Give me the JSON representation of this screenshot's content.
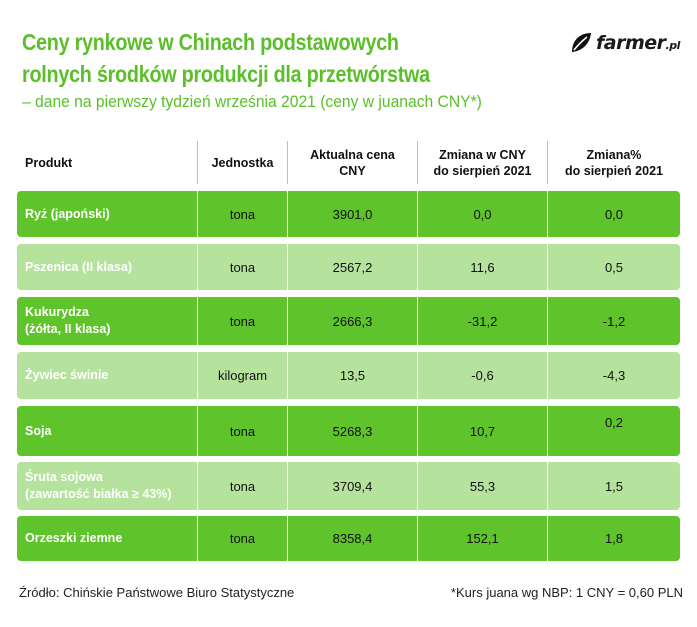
{
  "header": {
    "title_line1": "Ceny rynkowe w Chinach podstawowych",
    "title_line2": "rolnych środków produkcji dla przetwórstwa",
    "subtitle": "– dane na pierwszy tydzień września 2021 (ceny w juanach CNY*)",
    "logo_text": "farmer",
    "logo_tld": ".pl",
    "title_color": "#5bbf2a"
  },
  "table": {
    "columns": [
      {
        "line1": "Produkt",
        "line2": ""
      },
      {
        "line1": "Jednostka",
        "line2": ""
      },
      {
        "line1": "Aktualna cena",
        "line2": "CNY"
      },
      {
        "line1": "Zmiana w CNY",
        "line2": "do sierpień 2021"
      },
      {
        "line1": "Zmiana%",
        "line2": "do sierpień 2021"
      }
    ],
    "rows": [
      {
        "name1": "Ryż (japoński)",
        "name2": "",
        "unit": "tona",
        "price": "3901,0",
        "change_cny": "0,0",
        "change_pct": "0,0"
      },
      {
        "name1": "Pszenica (II klasa)",
        "name2": "",
        "unit": "tona",
        "price": "2567,2",
        "change_cny": "11,6",
        "change_pct": "0,5"
      },
      {
        "name1": "Kukurydza",
        "name2": "(żółta, II klasa)",
        "unit": "tona",
        "price": "2666,3",
        "change_cny": "-31,2",
        "change_pct": "-1,2"
      },
      {
        "name1": "Żywiec świnie",
        "name2": "",
        "unit": "kilogram",
        "price": "13,5",
        "change_cny": "-0,6",
        "change_pct": "-4,3"
      },
      {
        "name1": "Soja",
        "name2": "",
        "unit": "tona",
        "price": "5268,3",
        "change_cny": "10,7",
        "change_pct": "0,2"
      },
      {
        "name1": "Śruta sojowa",
        "name2": "(zawartość białka ≥ 43%)",
        "unit": "tona",
        "price": "3709,4",
        "change_cny": "55,3",
        "change_pct": "1,5"
      },
      {
        "name1": "Orzeszki ziemne",
        "name2": "",
        "unit": "tona",
        "price": "8358,4",
        "change_cny": "152,1",
        "change_pct": "1,8"
      }
    ],
    "row_colors": {
      "dark": "#5fc42b",
      "light": "#b5e29c"
    }
  },
  "footer": {
    "source": "Źródło: Chińskie Państwowe Biuro Statystyczne",
    "note": "*Kurs juana wg NBP: 1 CNY = 0,60 PLN"
  }
}
